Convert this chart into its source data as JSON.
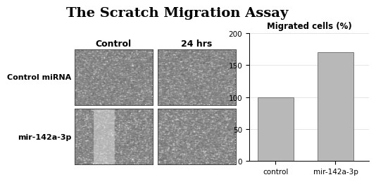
{
  "title": "The Scratch Migration Assay",
  "col_labels": [
    "Control",
    "24 hrs"
  ],
  "row_labels": [
    "Control miRNA",
    "mir-142a-3p"
  ],
  "bar_title": "Migrated cells (%)",
  "bar_categories": [
    "control",
    "mir-142a-3p"
  ],
  "bar_values": [
    100,
    170
  ],
  "bar_color": "#b8b8b8",
  "bar_ylim": [
    0,
    200
  ],
  "bar_yticks": [
    0,
    50,
    100,
    150,
    200
  ],
  "background_color": "#ffffff",
  "title_fontsize": 14,
  "col_label_fontsize": 9,
  "row_label_fontsize": 8,
  "bar_title_fontsize": 8.5,
  "bar_tick_fontsize": 7.5
}
